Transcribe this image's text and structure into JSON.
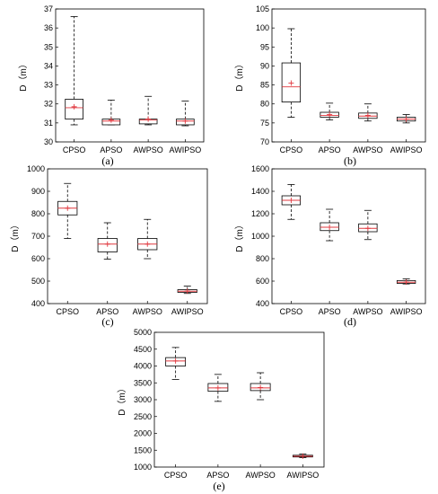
{
  "chart_data": [
    {
      "type": "box",
      "panel_label": "(a)",
      "ylabel": "D（m）",
      "categories": [
        "CPSO",
        "APSO",
        "AWPSO",
        "AWIPSO"
      ],
      "ylim": [
        30,
        37
      ],
      "yticks": [
        30,
        31,
        32,
        33,
        34,
        35,
        36,
        37
      ],
      "boxes": [
        {
          "whisker_low": 30.9,
          "q1": 31.2,
          "median": 31.8,
          "mean": 31.85,
          "q3": 32.25,
          "whisker_high": 36.6
        },
        {
          "whisker_low": 30.9,
          "q1": 30.9,
          "median": 31.1,
          "mean": 31.15,
          "q3": 31.2,
          "whisker_high": 32.2
        },
        {
          "whisker_low": 30.9,
          "q1": 30.95,
          "median": 31.15,
          "mean": 31.2,
          "q3": 31.2,
          "whisker_high": 32.4
        },
        {
          "whisker_low": 30.85,
          "q1": 30.9,
          "median": 31.1,
          "mean": 31.1,
          "q3": 31.2,
          "whisker_high": 32.15
        }
      ]
    },
    {
      "type": "box",
      "panel_label": "(b)",
      "ylabel": "D（m）",
      "categories": [
        "CPSO",
        "APSO",
        "AWPSO",
        "AWIPSO"
      ],
      "ylim": [
        70,
        105
      ],
      "yticks": [
        70,
        75,
        80,
        85,
        90,
        95,
        100,
        105
      ],
      "boxes": [
        {
          "whisker_low": 76.5,
          "q1": 80.5,
          "median": 84.5,
          "mean": 85.5,
          "q3": 90.8,
          "whisker_high": 99.8
        },
        {
          "whisker_low": 75.8,
          "q1": 76.5,
          "median": 77.0,
          "mean": 77.2,
          "q3": 77.8,
          "whisker_high": 80.2
        },
        {
          "whisker_low": 75.5,
          "q1": 76.2,
          "median": 76.8,
          "mean": 77.0,
          "q3": 77.6,
          "whisker_high": 80.0
        },
        {
          "whisker_low": 75.0,
          "q1": 75.5,
          "median": 76.0,
          "mean": 76.0,
          "q3": 76.5,
          "whisker_high": 77.2
        }
      ]
    },
    {
      "type": "box",
      "panel_label": "(c)",
      "ylabel": "D（m）",
      "categories": [
        "CPSO",
        "APSO",
        "AWPSO",
        "AWIPSO"
      ],
      "ylim": [
        400,
        1000
      ],
      "yticks": [
        400,
        500,
        600,
        700,
        800,
        900,
        1000
      ],
      "boxes": [
        {
          "whisker_low": 690,
          "q1": 795,
          "median": 825,
          "mean": 825,
          "q3": 855,
          "whisker_high": 935
        },
        {
          "whisker_low": 598,
          "q1": 630,
          "median": 665,
          "mean": 665,
          "q3": 690,
          "whisker_high": 760
        },
        {
          "whisker_low": 600,
          "q1": 640,
          "median": 665,
          "mean": 665,
          "q3": 690,
          "whisker_high": 775
        },
        {
          "whisker_low": 445,
          "q1": 450,
          "median": 455,
          "mean": 456,
          "q3": 462,
          "whisker_high": 478
        }
      ]
    },
    {
      "type": "box",
      "panel_label": "(d)",
      "ylabel": "D（m）",
      "categories": [
        "CPSO",
        "APSO",
        "AWPSO",
        "AWIPSO"
      ],
      "ylim": [
        400,
        1600
      ],
      "yticks": [
        400,
        600,
        800,
        1000,
        1200,
        1400,
        1600
      ],
      "boxes": [
        {
          "whisker_low": 1150,
          "q1": 1280,
          "median": 1320,
          "mean": 1320,
          "q3": 1360,
          "whisker_high": 1460
        },
        {
          "whisker_low": 960,
          "q1": 1050,
          "median": 1080,
          "mean": 1080,
          "q3": 1120,
          "whisker_high": 1240
        },
        {
          "whisker_low": 970,
          "q1": 1040,
          "median": 1070,
          "mean": 1070,
          "q3": 1110,
          "whisker_high": 1230
        },
        {
          "whisker_low": 575,
          "q1": 580,
          "median": 590,
          "mean": 592,
          "q3": 605,
          "whisker_high": 620
        }
      ]
    },
    {
      "type": "box",
      "panel_label": "(e)",
      "ylabel": "D（m）",
      "categories": [
        "CPSO",
        "APSO",
        "AWPSO",
        "AWIPSO"
      ],
      "ylim": [
        1000,
        5000
      ],
      "yticks": [
        1000,
        1500,
        2000,
        2500,
        3000,
        3500,
        4000,
        4500,
        5000
      ],
      "boxes": [
        {
          "whisker_low": 3600,
          "q1": 4000,
          "median": 4150,
          "mean": 4150,
          "q3": 4250,
          "whisker_high": 4550
        },
        {
          "whisker_low": 2950,
          "q1": 3250,
          "median": 3350,
          "mean": 3350,
          "q3": 3480,
          "whisker_high": 3750
        },
        {
          "whisker_low": 3000,
          "q1": 3270,
          "median": 3350,
          "mean": 3360,
          "q3": 3480,
          "whisker_high": 3800
        },
        {
          "whisker_low": 1280,
          "q1": 1300,
          "median": 1320,
          "mean": 1325,
          "q3": 1350,
          "whisker_high": 1390
        }
      ]
    }
  ],
  "style": {
    "median_color": "#e0383f",
    "mean_color": "#e0383f",
    "box_color": "#000000"
  }
}
